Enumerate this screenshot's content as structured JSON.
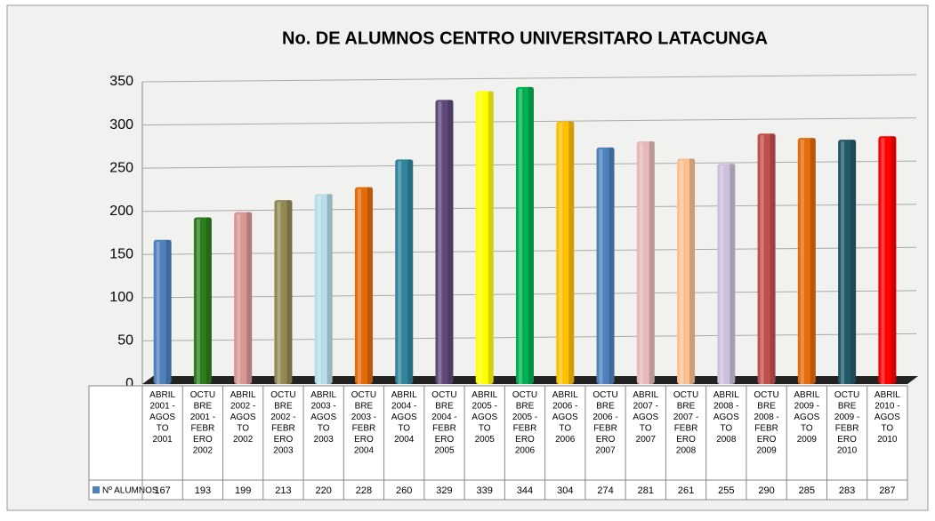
{
  "chart_data": {
    "type": "bar",
    "title": "No. DE ALUMNOS CENTRO UNIVERSITARO LATACUNGA",
    "categories": [
      "ABRIL 2001 - AGOSTO 2001",
      "OCTUBRE 2001 - FEBRERO 2002",
      "ABRIL 2002 - AGOSTO 2002",
      "OCTUBRE 2002 - FEBRERO 2003",
      "ABRIL 2003 - AGOSTO 2003",
      "OCTUBRE 2003 - FEBRERO 2004",
      "ABRIL 2004 - AGOSTO 2004",
      "OCTUBRE 2004 - FEBRERO 2005",
      "ABRIL 2005 - AGOSTO 2005",
      "OCTUBRE 2005 - FEBRERO 2006",
      "ABRIL 2006 - AGOSTO 2006",
      "OCTUBRE 2006 - FEBRERO 2007",
      "ABRIL 2007 - AGOSTO 2007",
      "OCTUBRE 2007 - FEBRERO 2008",
      "ABRIL 2008 - AGOSTO 2008",
      "OCTUBRE 2008 - FEBRERO 2009",
      "ABRIL 2009 - AGOSTO 2009",
      "OCTUBRE 2009 - FEBRERO 2010",
      "ABRIL 2010 - AGOSTO 2010"
    ],
    "series": [
      {
        "name": "Nº ALUMNOS",
        "color": "#4f81bd",
        "colors": [
          "#4f81bd",
          "#2e7d1e",
          "#d99694",
          "#938953",
          "#b7dde8",
          "#e36c09",
          "#31859c",
          "#5f497a",
          "#ffff00",
          "#00b050",
          "#ffc000",
          "#4f81bd",
          "#e6b9b8",
          "#fac090",
          "#ccc1da",
          "#c0504d",
          "#e46c0a",
          "#215968",
          "#ff0000"
        ],
        "values": [
          167,
          193,
          199,
          213,
          220,
          228,
          260,
          329,
          339,
          344,
          304,
          274,
          281,
          261,
          255,
          290,
          285,
          283,
          287
        ]
      }
    ],
    "ylim": [
      0,
      350
    ],
    "yticks": [
      0,
      50,
      100,
      150,
      200,
      250,
      300,
      350
    ],
    "grid": true
  }
}
